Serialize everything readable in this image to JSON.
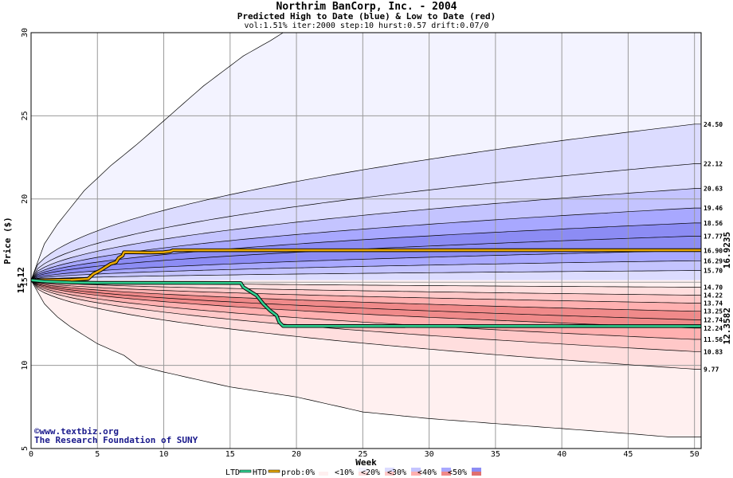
{
  "chart_data": {
    "type": "area",
    "title": "Northrim BanCorp, Inc. - 2004",
    "subtitle": "Predicted High to Date (blue) &  Low to Date (red)",
    "params": "vol:1.51% iter:2000 step:10 hurst:0.57 drift:0.07/0",
    "xlabel": "Week",
    "ylabel": "Price ($)",
    "xlim": [
      0,
      50.5
    ],
    "ylim": [
      5,
      30
    ],
    "x_ticks": [
      "0",
      "5",
      "10",
      "15",
      "20",
      "25",
      "30",
      "35",
      "40",
      "45",
      "50"
    ],
    "y_ticks": [
      "5",
      "10",
      "15",
      "20",
      "25",
      "30"
    ],
    "grid": true,
    "start_price": "15.12",
    "htd_final_label": "16.9235",
    "ltd_final_label": "12.3582",
    "colors": {
      "htd_line": "#e8a800",
      "ltd_line": "#30d090",
      "start_label": "#006600",
      "blue_bands": [
        "#f3f3ff",
        "#dcdcff",
        "#c4c4ff",
        "#a8a8ff",
        "#8c8cf4"
      ],
      "red_bands": [
        "#fff0f0",
        "#ffdede",
        "#ffc8c8",
        "#ffb0b0",
        "#f08a8a"
      ]
    },
    "upper_envelope_labels": [
      "24.50",
      "22.12",
      "20.63",
      "19.46",
      "18.56",
      "17.77",
      "16.90",
      "16.29",
      "15.70"
    ],
    "upper_envelope_final": [
      24.5,
      22.12,
      20.63,
      19.46,
      18.56,
      17.77,
      16.9,
      16.29,
      15.7
    ],
    "lower_envelope_labels": [
      "14.70",
      "14.22",
      "13.74",
      "13.25",
      "12.74",
      "12.24",
      "11.56",
      "10.83",
      "9.77"
    ],
    "lower_envelope_final": [
      14.7,
      14.22,
      13.74,
      13.25,
      12.74,
      12.24,
      11.56,
      10.83,
      9.77
    ],
    "max_envelope": [
      [
        0,
        15.12
      ],
      [
        1,
        17.3
      ],
      [
        2,
        18.5
      ],
      [
        3,
        19.5
      ],
      [
        4,
        20.5
      ],
      [
        6,
        22
      ],
      [
        8,
        23.3
      ],
      [
        10,
        24.7
      ],
      [
        13,
        26.8
      ],
      [
        16,
        28.6
      ],
      [
        18,
        29.5
      ],
      [
        19,
        30
      ]
    ],
    "min_envelope": [
      [
        0,
        15.12
      ],
      [
        1,
        13.7
      ],
      [
        2,
        12.9
      ],
      [
        3,
        12.3
      ],
      [
        5,
        11.3
      ],
      [
        7,
        10.6
      ],
      [
        8,
        10
      ],
      [
        10,
        9.6
      ],
      [
        15,
        8.7
      ],
      [
        20,
        8.1
      ],
      [
        25,
        7.2
      ],
      [
        30,
        6.8
      ],
      [
        35,
        6.5
      ],
      [
        40,
        6.2
      ],
      [
        45,
        5.9
      ],
      [
        48,
        5.7
      ],
      [
        50.5,
        5.7
      ]
    ],
    "htd_series": [
      [
        0,
        15.12
      ],
      [
        3,
        15.14
      ],
      [
        4.3,
        15.2
      ],
      [
        4.7,
        15.5
      ],
      [
        5.2,
        15.7
      ],
      [
        5.6,
        15.9
      ],
      [
        6,
        16.1
      ],
      [
        6.4,
        16.2
      ],
      [
        6.6,
        16.45
      ],
      [
        6.9,
        16.6
      ],
      [
        7,
        16.8
      ],
      [
        9,
        16.78
      ],
      [
        10,
        16.8
      ],
      [
        10.5,
        16.85
      ],
      [
        10.7,
        16.92
      ],
      [
        15,
        16.92
      ],
      [
        25,
        16.92
      ],
      [
        50.5,
        16.9235
      ]
    ],
    "ltd_series": [
      [
        0,
        15.12
      ],
      [
        1,
        15.05
      ],
      [
        3,
        14.98
      ],
      [
        5,
        14.96
      ],
      [
        15,
        14.95
      ],
      [
        15.8,
        14.95
      ],
      [
        16,
        14.7
      ],
      [
        16.5,
        14.45
      ],
      [
        17,
        14.2
      ],
      [
        17.5,
        13.7
      ],
      [
        18,
        13.3
      ],
      [
        18.5,
        13.0
      ],
      [
        18.7,
        12.6
      ],
      [
        19,
        12.36
      ],
      [
        25,
        12.36
      ],
      [
        50.5,
        12.3582
      ]
    ],
    "legend": {
      "items": [
        "LTD",
        "HTD",
        "prob:0%",
        "<10%",
        "<20%",
        "<30%",
        "<40%",
        "<50%"
      ]
    },
    "credits": [
      "©www.textbiz.org",
      "The Research Foundation of SUNY"
    ]
  }
}
